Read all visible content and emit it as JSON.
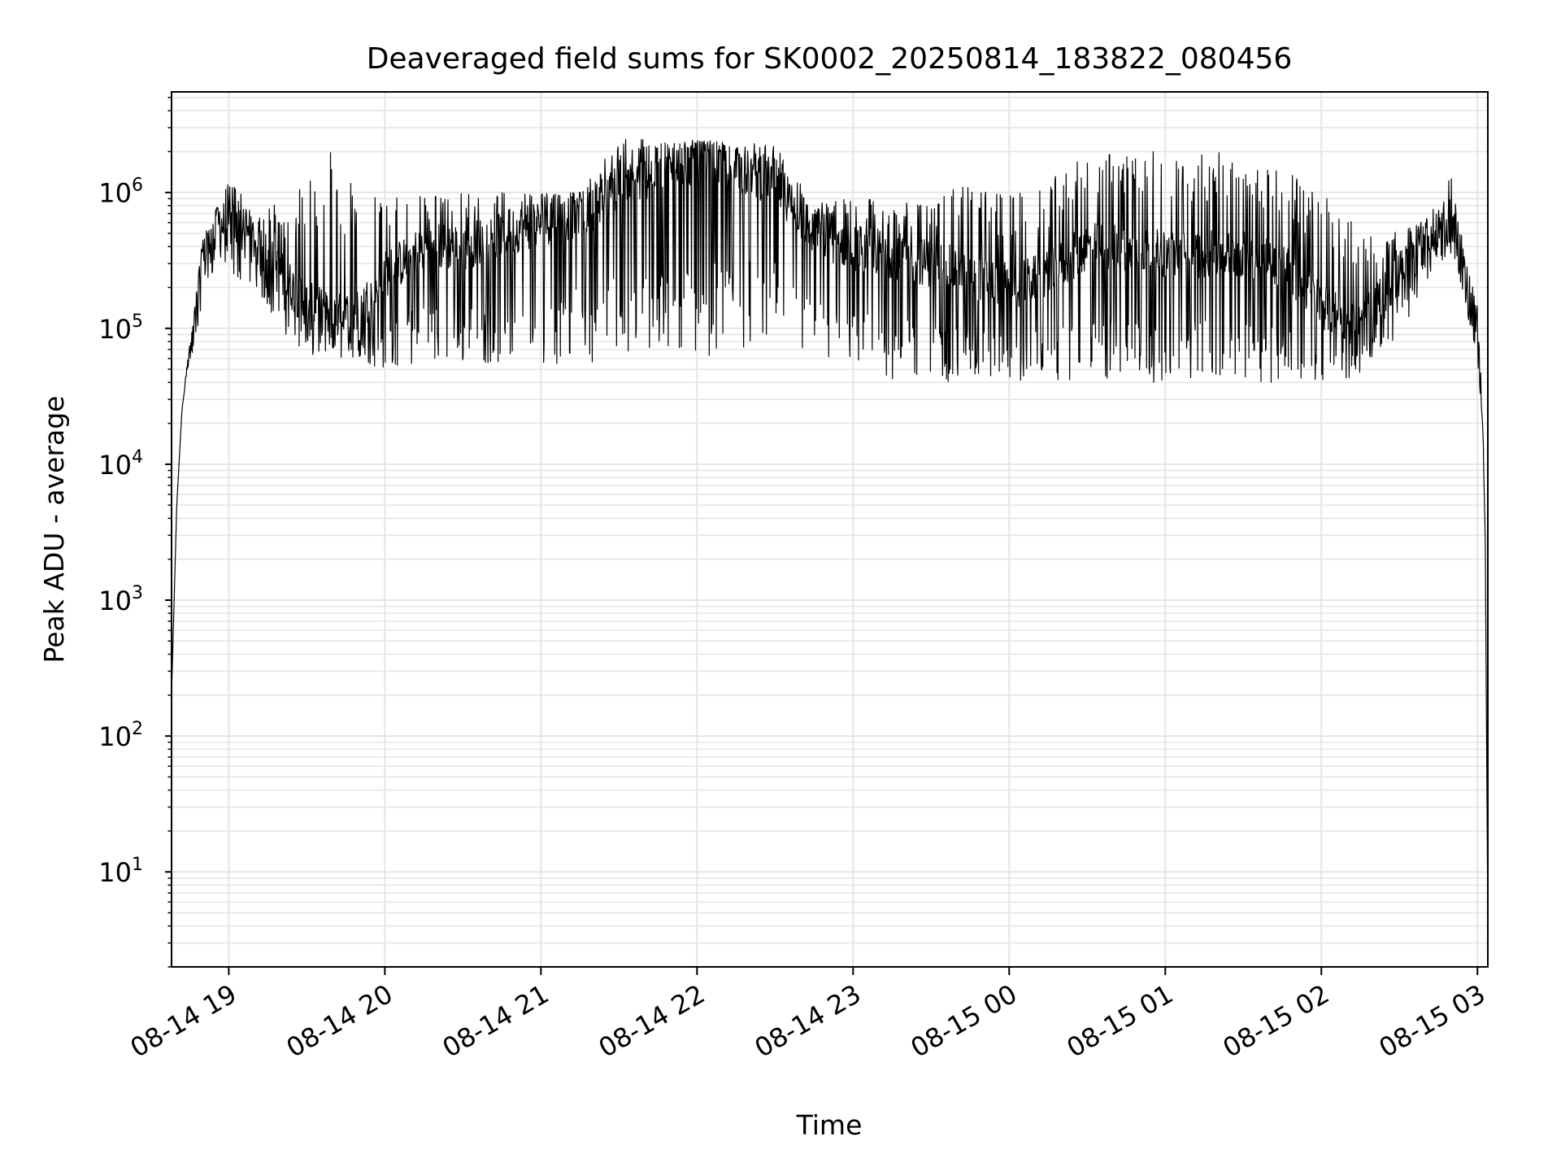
{
  "chart_data": {
    "type": "line",
    "title": "Deaveraged field sums for SK0002_20250814_183822_080456",
    "xlabel": "Time",
    "ylabel": "Peak ADU - average",
    "yscale": "log",
    "ylim": [
      2,
      5500000
    ],
    "xlim": [
      "2025-08-14 18:38",
      "2025-08-15 03:04"
    ],
    "grid": true,
    "line_color": "#000000",
    "grid_color": "#e5e5e5",
    "x_ticks": [
      "08-14 19",
      "08-14 20",
      "08-14 21",
      "08-14 22",
      "08-14 23",
      "08-15 00",
      "08-15 01",
      "08-15 02",
      "08-15 03"
    ],
    "y_ticks": [
      {
        "base": "10",
        "exp": "1"
      },
      {
        "base": "10",
        "exp": "2"
      },
      {
        "base": "10",
        "exp": "3"
      },
      {
        "base": "10",
        "exp": "4"
      },
      {
        "base": "10",
        "exp": "5"
      },
      {
        "base": "10",
        "exp": "6"
      }
    ],
    "series": [
      {
        "x": [
          "2025-08-14 18:38",
          "2025-08-14 18:39",
          "2025-08-14 18:40",
          "2025-08-14 18:42",
          "2025-08-14 18:44",
          "2025-08-14 18:46",
          "2025-08-14 18:50",
          "2025-08-14 18:55",
          "2025-08-14 19:00",
          "2025-08-14 19:10",
          "2025-08-14 19:20",
          "2025-08-14 19:30",
          "2025-08-14 19:40",
          "2025-08-14 19:50",
          "2025-08-14 20:00",
          "2025-08-14 20:15",
          "2025-08-14 20:30",
          "2025-08-14 20:45",
          "2025-08-14 21:00",
          "2025-08-14 21:15",
          "2025-08-14 21:30",
          "2025-08-14 21:45",
          "2025-08-14 22:00",
          "2025-08-14 22:15",
          "2025-08-14 22:30",
          "2025-08-14 22:45",
          "2025-08-14 23:00",
          "2025-08-14 23:15",
          "2025-08-14 23:30",
          "2025-08-14 23:45",
          "2025-08-15 00:00",
          "2025-08-15 00:15",
          "2025-08-15 00:30",
          "2025-08-15 00:45",
          "2025-08-15 01:00",
          "2025-08-15 01:15",
          "2025-08-15 01:30",
          "2025-08-15 01:45",
          "2025-08-15 02:00",
          "2025-08-15 02:15",
          "2025-08-15 02:30",
          "2025-08-15 02:45",
          "2025-08-15 02:50",
          "2025-08-15 02:55",
          "2025-08-15 03:00",
          "2025-08-15 03:02",
          "2025-08-15 03:03",
          "2025-08-15 03:04"
        ],
        "values": [
          200,
          1000,
          5000,
          25000,
          55000,
          90000,
          300000,
          560000,
          600000,
          450000,
          250000,
          150000,
          120000,
          130000,
          250000,
          400000,
          400000,
          500000,
          600000,
          700000,
          1000000,
          1500000,
          1700000,
          1500000,
          1200000,
          500000,
          400000,
          350000,
          300000,
          250000,
          200000,
          250000,
          400000,
          400000,
          350000,
          350000,
          350000,
          300000,
          150000,
          100000,
          250000,
          550000,
          600000,
          250000,
          90000,
          20000,
          3000,
          4
        ],
        "min_values": [
          200,
          1000,
          5000,
          25000,
          50000,
          60000,
          150000,
          300000,
          250000,
          200000,
          100000,
          60000,
          60000,
          55000,
          50000,
          55000,
          55000,
          55000,
          55000,
          55000,
          60000,
          60000,
          60000,
          70000,
          80000,
          60000,
          45000,
          40000,
          40000,
          40000,
          40000,
          40000,
          40000,
          40000,
          40000,
          40000,
          40000,
          40000,
          40000,
          45000,
          90000,
          300000,
          350000,
          150000,
          60000,
          20000,
          3000,
          4
        ],
        "max_values": [
          200,
          1000,
          5000,
          25000,
          55000,
          100000,
          500000,
          750000,
          1200000,
          900000,
          800000,
          1200000,
          3000000,
          1000000,
          1000000,
          1000000,
          1000000,
          1000000,
          1000000,
          1000000,
          2500000,
          2600000,
          2400000,
          2400000,
          2200000,
          900000,
          900000,
          900000,
          900000,
          1200000,
          1000000,
          1200000,
          2000000,
          2000000,
          2000000,
          2000000,
          2100000,
          1500000,
          1000000,
          700000,
          500000,
          800000,
          1400000,
          400000,
          150000,
          25000,
          3000,
          4
        ]
      }
    ]
  }
}
